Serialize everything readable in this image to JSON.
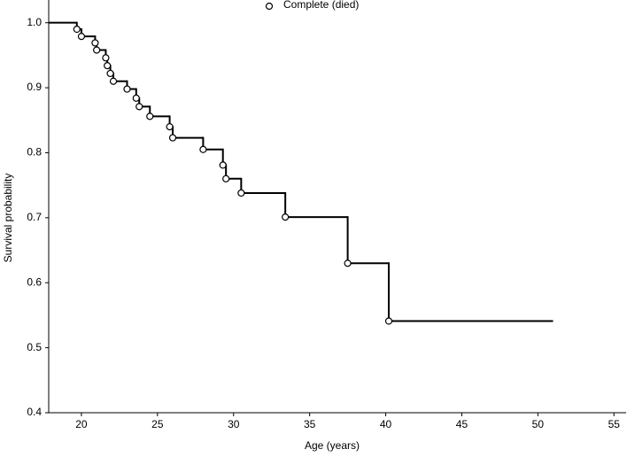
{
  "chart_data": {
    "type": "step",
    "x_label": "Age (years)",
    "y_label": "Survival probability",
    "survival": {
      "color": "#000000",
      "x": [
        17.85,
        19.7,
        20.0,
        20.9,
        21.0,
        21.6,
        21.7,
        21.9,
        22.1,
        23.0,
        23.6,
        23.8,
        24.5,
        25.8,
        26.0,
        28.0,
        29.3,
        29.5,
        30.5,
        33.4,
        37.5,
        40.2,
        51.0
      ],
      "values": [
        1.0,
        0.99,
        0.979,
        0.969,
        0.958,
        0.946,
        0.934,
        0.922,
        0.91,
        0.898,
        0.884,
        0.871,
        0.856,
        0.84,
        0.823,
        0.805,
        0.781,
        0.76,
        0.738,
        0.701,
        0.63,
        0.541,
        0.541
      ]
    },
    "series": [
      {
        "name": "Complete (died)",
        "color": "#000000",
        "x": [
          19.7,
          20.0,
          20.9,
          21.0,
          21.6,
          21.7,
          21.9,
          22.1,
          23.0,
          23.6,
          23.8,
          24.5,
          25.8,
          26.0,
          28.0,
          29.3,
          29.5,
          30.5,
          33.4,
          37.5,
          40.2
        ],
        "values": [
          0.99,
          0.979,
          0.969,
          0.958,
          0.946,
          0.934,
          0.922,
          0.91,
          0.898,
          0.884,
          0.871,
          0.856,
          0.84,
          0.823,
          0.805,
          0.781,
          0.76,
          0.738,
          0.701,
          0.63,
          0.541
        ]
      }
    ],
    "xlim": [
      17.85,
      55.8
    ],
    "xticks": [
      20,
      25,
      30,
      35,
      40,
      45,
      50,
      55
    ],
    "ylim": [
      0.4,
      1.035
    ],
    "yticks": [
      {
        "value": 0.4,
        "label": "0.4"
      },
      0.5,
      0.6,
      0.7,
      0.8,
      0.9,
      {
        "value": 1,
        "label": "1.0"
      }
    ],
    "legend": "top"
  }
}
